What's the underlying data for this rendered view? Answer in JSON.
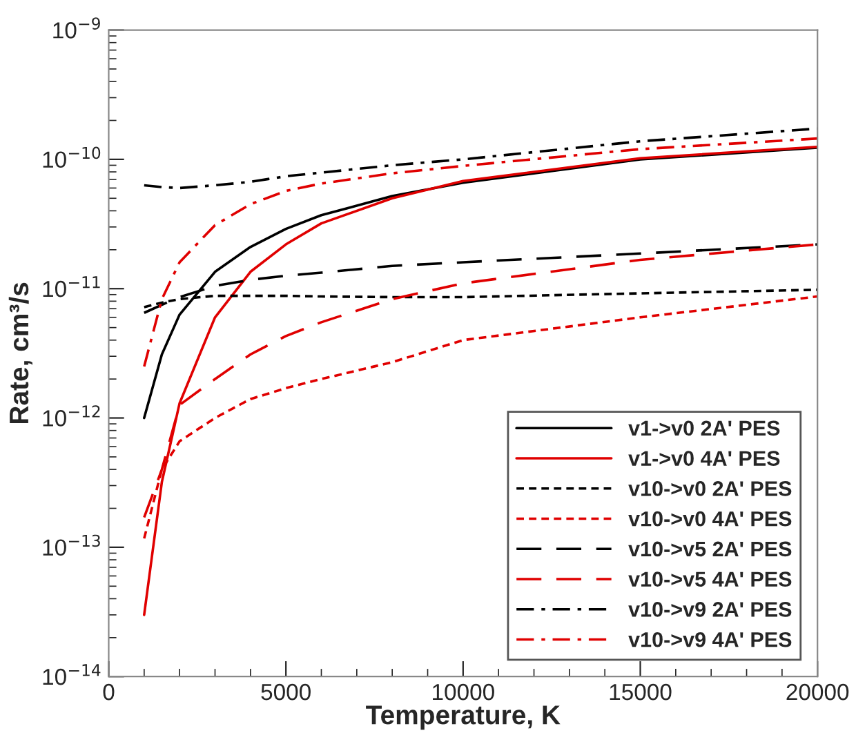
{
  "chart_data": {
    "type": "line",
    "xlabel": "Temperature, K",
    "ylabel": "Rate, cm³/s",
    "log": true,
    "xlim": [
      0,
      20000
    ],
    "xticks": [
      0,
      5000,
      10000,
      15000,
      20000
    ],
    "ylim": [
      1e-14,
      1e-09
    ],
    "yticks": [
      {
        "value": 1e-14,
        "label": "10$^{−14}$"
      },
      {
        "value": 1e-13,
        "label": "10$^{−13}$"
      },
      {
        "value": 1e-12,
        "label": "10$^{−12}$"
      },
      {
        "value": 1e-11,
        "label": "10$^{−11}$"
      },
      {
        "value": 1e-10,
        "label": "10$^{−10}$"
      },
      {
        "value": 1e-09,
        "label": "10$^{−9}$"
      }
    ],
    "grid": false,
    "legend": "bottom right",
    "marker": "none",
    "x": [
      1000,
      1500,
      2000,
      3000,
      4000,
      5000,
      6000,
      8000,
      10000,
      15000,
      20000
    ],
    "series": [
      {
        "name": "v1->v0 2A' PES",
        "color": "#000000",
        "line_style": "solid",
        "values": [
          1e-12,
          3.1e-12,
          6.3e-12,
          1.35e-11,
          2.1e-11,
          2.9e-11,
          3.7e-11,
          5.2e-11,
          6.6e-11,
          1e-10,
          1.23e-10
        ]
      },
      {
        "name": "v1->v0 4A' PES",
        "color": "#e00000",
        "line_style": "solid",
        "values": [
          3e-14,
          3.2e-13,
          1.3e-12,
          6e-12,
          1.35e-11,
          2.2e-11,
          3.2e-11,
          5e-11,
          6.8e-11,
          1.02e-10,
          1.25e-10
        ]
      },
      {
        "name": "v10->v0 2A' PES",
        "color": "#000000",
        "line_style": "dotted",
        "values": [
          7.2e-12,
          7.8e-12,
          8.3e-12,
          8.8e-12,
          8.8e-12,
          8.8e-12,
          8.7e-12,
          8.6e-12,
          8.6e-12,
          9.2e-12,
          9.8e-12
        ]
      },
      {
        "name": "v10->v0 4A' PES",
        "color": "#e00000",
        "line_style": "dotted",
        "values": [
          1.17e-13,
          4e-13,
          6.6e-13,
          1e-12,
          1.4e-12,
          1.7e-12,
          2e-12,
          2.7e-12,
          4e-12,
          6e-12,
          8.7e-12
        ]
      },
      {
        "name": "v10->v5 2A' PES",
        "color": "#000000",
        "line_style": "dashed",
        "values": [
          6.5e-12,
          7.5e-12,
          8.6e-12,
          1.05e-11,
          1.17e-11,
          1.26e-11,
          1.33e-11,
          1.5e-11,
          1.6e-11,
          1.87e-11,
          2.2e-11
        ]
      },
      {
        "name": "v10->v5 4A' PES",
        "color": "#e00000",
        "line_style": "dashed",
        "values": [
          1.7e-13,
          4e-13,
          1.26e-12,
          2e-12,
          3.1e-12,
          4.3e-12,
          5.5e-12,
          8.3e-12,
          1.1e-11,
          1.67e-11,
          2.2e-11
        ]
      },
      {
        "name": "v10->v9 2A' PES",
        "color": "#000000",
        "line_style": "dashdot",
        "values": [
          6.3e-11,
          6.1e-11,
          6e-11,
          6.3e-11,
          6.7e-11,
          7.4e-11,
          7.9e-11,
          9e-11,
          1e-10,
          1.38e-10,
          1.73e-10
        ]
      },
      {
        "name": "v10->v9 4A' PES",
        "color": "#e00000",
        "line_style": "dashdot",
        "values": [
          2.5e-12,
          8.3e-12,
          1.6e-11,
          3.1e-11,
          4.5e-11,
          5.7e-11,
          6.5e-11,
          7.8e-11,
          8.9e-11,
          1.2e-10,
          1.45e-10
        ]
      }
    ]
  }
}
